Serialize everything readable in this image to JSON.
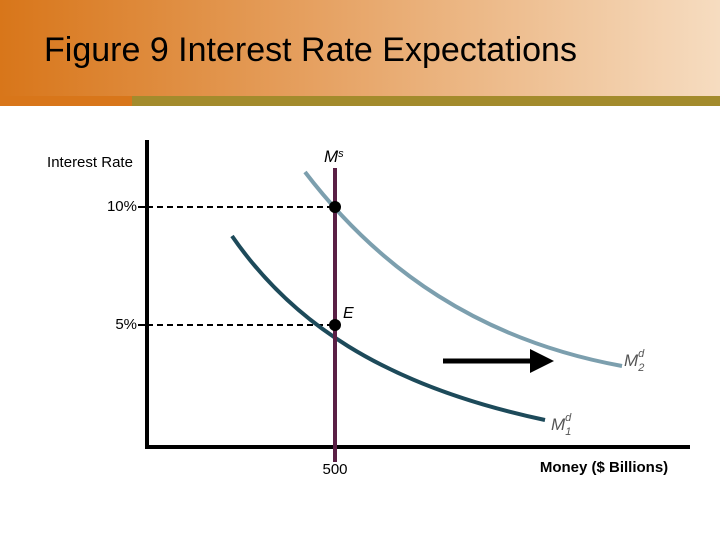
{
  "header": {
    "title": "Figure 9 Interest Rate Expectations"
  },
  "axes": {
    "y_label": "Interest Rate",
    "x_label": "Money ($ Billions)"
  },
  "ticks": {
    "y_high": "10%",
    "y_low": "5%",
    "x": "500"
  },
  "curves": {
    "supply": {
      "base": "M",
      "sup": "s"
    },
    "demand_2": {
      "base": "M",
      "sup": "d",
      "sub": "2"
    },
    "demand_1": {
      "base": "M",
      "sup": "d",
      "sub": "1"
    }
  },
  "points": {
    "equilibrium": "E"
  }
}
